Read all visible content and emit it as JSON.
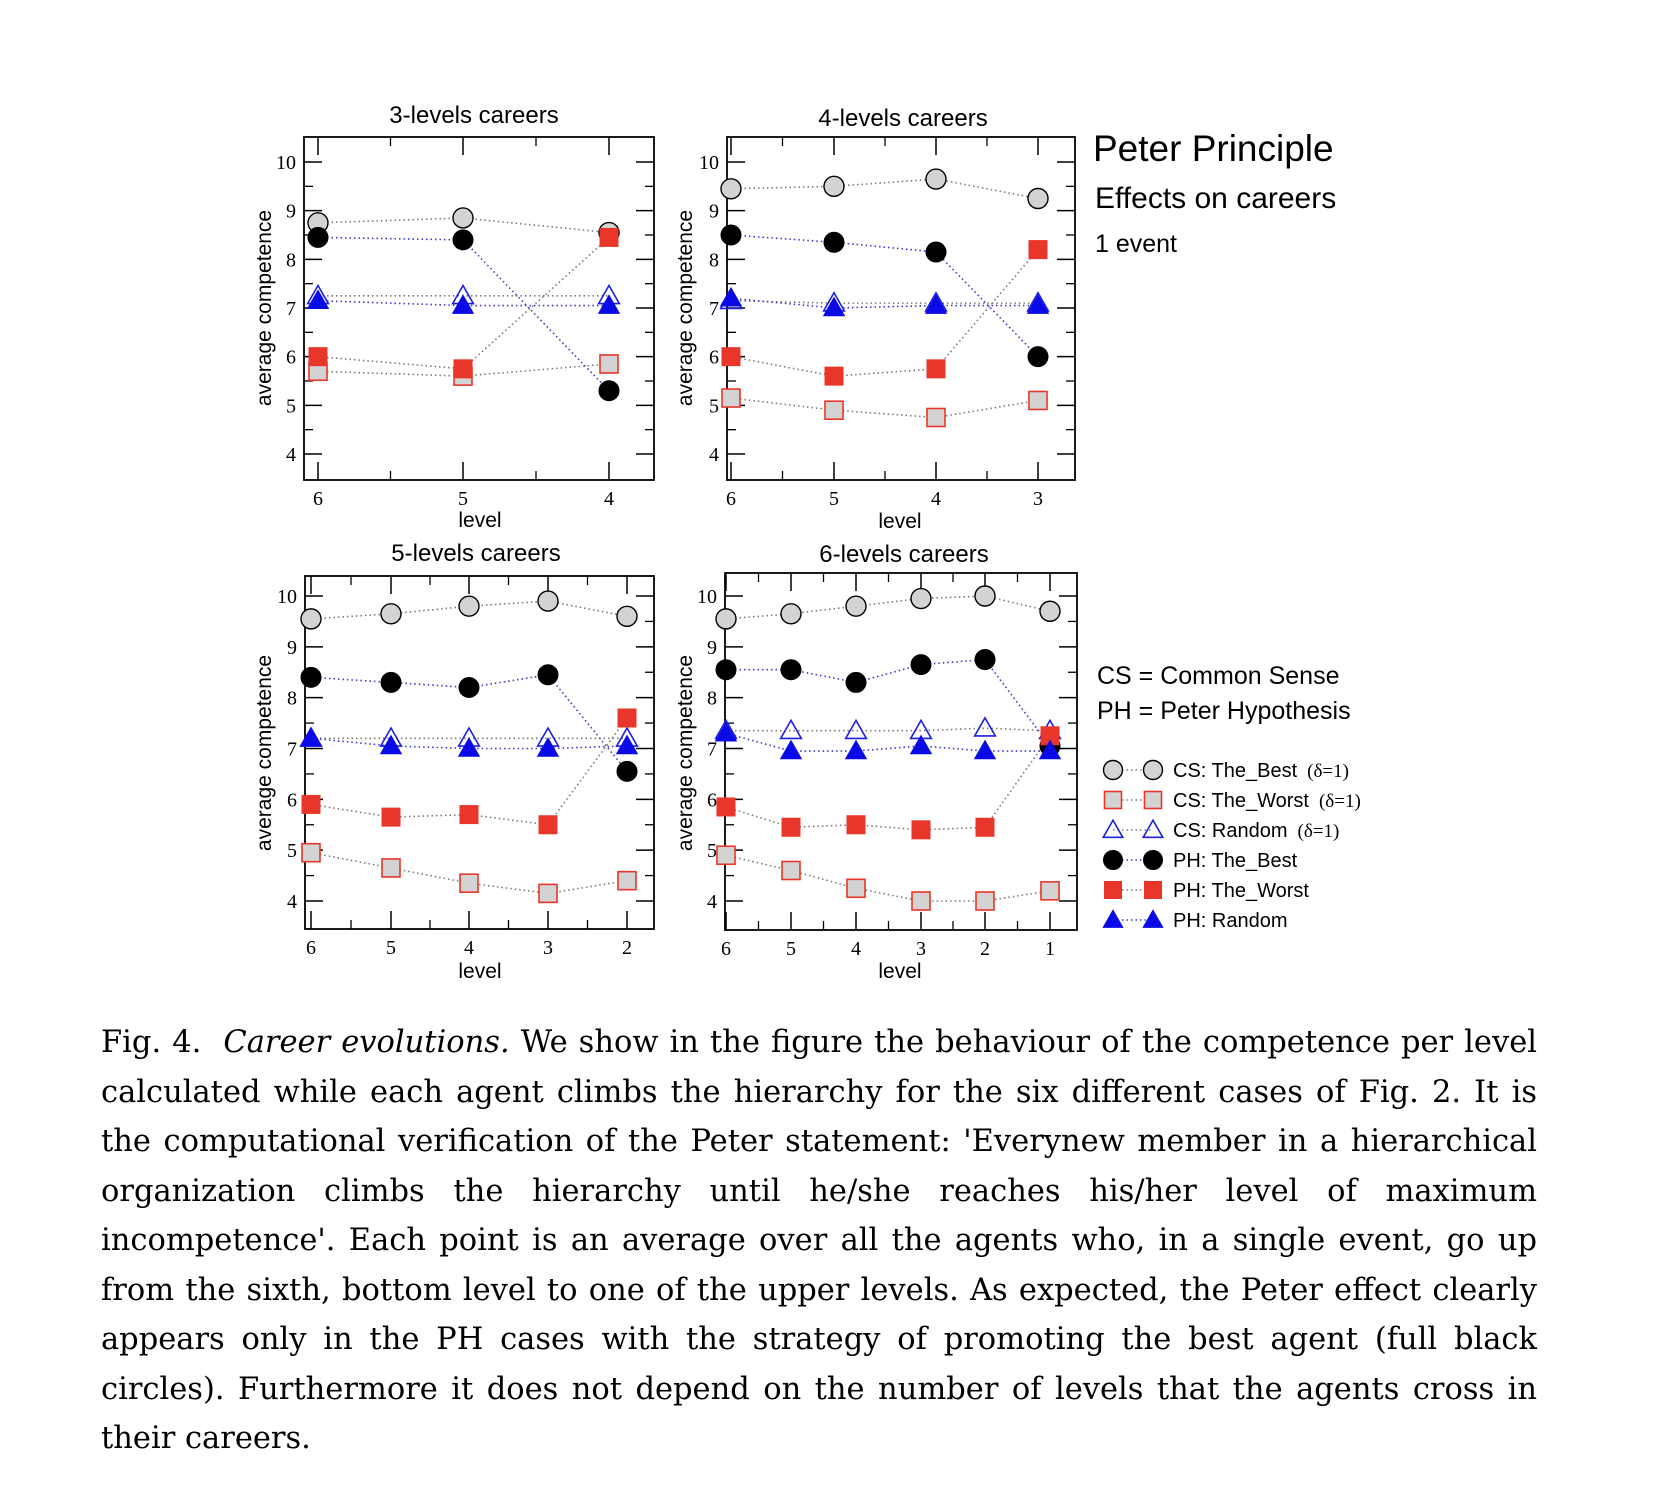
{
  "caption": {
    "label": "Fig. 4.",
    "title": "Career evolutions.",
    "text": "We show in the figure the behaviour of the competence per level calculated while each agent climbs the hierarchy for the six different cases of Fig. 2. It is the computational verification of the Peter statement: 'Everynew member in a hierarchical organization climbs the hierarchy until he/she reaches his/her level of maximum incompetence'. Each point is an average over all the agents who, in a single event, go up from the sixth, bottom level to one of the upper levels. As expected, the Peter effect clearly appears only in the PH cases with the strategy of promoting the best agent (full black circles). Furthermore it does not depend on the number of levels that the agents cross in their careers."
  },
  "annotations": {
    "title": "Peter Principle",
    "subtitle": "Effects on careers",
    "events": "1 event",
    "cs_def": "CS = Common Sense",
    "ph_def": "PH = Peter Hypothesis"
  },
  "legend": [
    {
      "label": "CS: The_Best",
      "delta": "(δ=1)"
    },
    {
      "label": "CS: The_Worst",
      "delta": "(δ=1)"
    },
    {
      "label": "CS: Random",
      "delta": "(δ=1)"
    },
    {
      "label": "PH: The_Best",
      "delta": ""
    },
    {
      "label": "PH: The_Worst",
      "delta": ""
    },
    {
      "label": "PH: Random",
      "delta": ""
    }
  ],
  "chart_data": [
    {
      "type": "line",
      "title": "3-levels careers",
      "xlabel": "level",
      "ylabel": "average competence",
      "x": [
        "6",
        "5",
        "4"
      ],
      "ylim": [
        3.7,
        10.5
      ],
      "yticks": [
        4,
        5,
        6,
        7,
        8,
        9,
        10
      ],
      "series": [
        {
          "name": "CS: The_Best",
          "values": [
            8.75,
            8.85,
            8.55
          ]
        },
        {
          "name": "CS: The_Worst",
          "values": [
            5.7,
            5.6,
            5.85
          ]
        },
        {
          "name": "CS: Random",
          "values": [
            7.25,
            7.25,
            7.25
          ]
        },
        {
          "name": "PH: The_Best",
          "values": [
            8.45,
            8.4,
            5.3
          ]
        },
        {
          "name": "PH: The_Worst",
          "values": [
            6.0,
            5.75,
            8.45
          ]
        },
        {
          "name": "PH: Random",
          "values": [
            7.15,
            7.05,
            7.05
          ]
        }
      ]
    },
    {
      "type": "line",
      "title": "4-levels careers",
      "xlabel": "level",
      "ylabel": "average competence",
      "x": [
        "6",
        "5",
        "4",
        "3"
      ],
      "ylim": [
        3.7,
        10.5
      ],
      "yticks": [
        4,
        5,
        6,
        7,
        8,
        9,
        10
      ],
      "series": [
        {
          "name": "CS: The_Best",
          "values": [
            9.45,
            9.5,
            9.65,
            9.25
          ]
        },
        {
          "name": "CS: The_Worst",
          "values": [
            5.15,
            4.9,
            4.75,
            5.1
          ]
        },
        {
          "name": "CS: Random",
          "values": [
            7.15,
            7.1,
            7.1,
            7.1
          ]
        },
        {
          "name": "PH: The_Best",
          "values": [
            8.5,
            8.35,
            8.15,
            6.0
          ]
        },
        {
          "name": "PH: The_Worst",
          "values": [
            6.0,
            5.6,
            5.75,
            8.2
          ]
        },
        {
          "name": "PH: Random",
          "values": [
            7.2,
            7.0,
            7.05,
            7.05
          ]
        }
      ]
    },
    {
      "type": "line",
      "title": "5-levels careers",
      "xlabel": "level",
      "ylabel": "average competence",
      "x": [
        "6",
        "5",
        "4",
        "3",
        "2"
      ],
      "ylim": [
        3.7,
        10.5
      ],
      "yticks": [
        4,
        5,
        6,
        7,
        8,
        9,
        10
      ],
      "series": [
        {
          "name": "CS: The_Best",
          "values": [
            9.55,
            9.65,
            9.8,
            9.9,
            9.6
          ]
        },
        {
          "name": "CS: The_Worst",
          "values": [
            4.95,
            4.65,
            4.35,
            4.15,
            4.4
          ]
        },
        {
          "name": "CS: Random",
          "values": [
            7.2,
            7.2,
            7.2,
            7.2,
            7.2
          ]
        },
        {
          "name": "PH: The_Best",
          "values": [
            8.4,
            8.3,
            8.2,
            8.45,
            6.55
          ]
        },
        {
          "name": "PH: The_Worst",
          "values": [
            5.9,
            5.65,
            5.7,
            5.5,
            7.6
          ]
        },
        {
          "name": "PH: Random",
          "values": [
            7.2,
            7.05,
            7.0,
            7.0,
            7.05
          ]
        }
      ]
    },
    {
      "type": "line",
      "title": "6-levels careers",
      "xlabel": "level",
      "ylabel": "average competence",
      "x": [
        "6",
        "5",
        "4",
        "3",
        "2",
        "1"
      ],
      "ylim": [
        3.7,
        10.5
      ],
      "yticks": [
        4,
        5,
        6,
        7,
        8,
        9,
        10
      ],
      "series": [
        {
          "name": "CS: The_Best",
          "values": [
            9.55,
            9.65,
            9.8,
            9.95,
            10.0,
            9.7
          ]
        },
        {
          "name": "CS: The_Worst",
          "values": [
            4.9,
            4.6,
            4.25,
            4.0,
            4.0,
            4.2
          ]
        },
        {
          "name": "CS: Random",
          "values": [
            7.35,
            7.35,
            7.35,
            7.35,
            7.4,
            7.35
          ]
        },
        {
          "name": "PH: The_Best",
          "values": [
            8.55,
            8.55,
            8.3,
            8.65,
            8.75,
            7.05
          ]
        },
        {
          "name": "PH: The_Worst",
          "values": [
            5.85,
            5.45,
            5.5,
            5.4,
            5.45,
            7.25
          ]
        },
        {
          "name": "PH: Random",
          "values": [
            7.3,
            6.95,
            6.95,
            7.05,
            6.95,
            6.95
          ]
        }
      ]
    }
  ],
  "colors": {
    "cs_best_fill": "#d3d3d3",
    "cs_worst_fill": "#d3d3d3",
    "cs_worst_stroke": "#e8362a",
    "cs_random_stroke": "#1f1fe0",
    "ph_best": "#000000",
    "ph_worst": "#e8362a",
    "ph_random": "#0a0ae6",
    "best_line": "#7a7a7a",
    "blue_line": "#3a3ad0"
  }
}
